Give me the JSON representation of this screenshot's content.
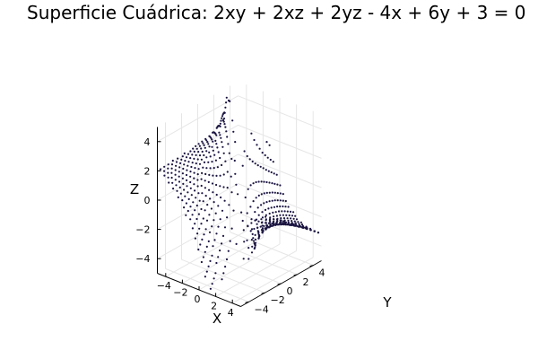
{
  "chart_data": {
    "type": "scatter",
    "title": "Superficie Cuádrica: 2xy + 2xz + 2yz - 4x + 6y + 3 = 0",
    "xlabel": "X",
    "ylabel": "Y",
    "zlabel": "Z",
    "xlim": [
      -5,
      5
    ],
    "ylim": [
      -5,
      5
    ],
    "zlim": [
      -5,
      5
    ],
    "x_ticks": [
      -4,
      -2,
      0,
      2,
      4
    ],
    "y_ticks": [
      -4,
      -2,
      0,
      2,
      4
    ],
    "z_ticks": [
      -4,
      -2,
      0,
      2,
      4
    ],
    "x_tick_labels": [
      "−4",
      "−2",
      "0",
      "2",
      "4"
    ],
    "y_tick_labels": [
      "−4",
      "−2",
      "0",
      "2",
      "4"
    ],
    "z_tick_labels": [
      "−4",
      "−2",
      "0",
      "2",
      "4"
    ],
    "equation": {
      "xy": 2,
      "xz": 2,
      "yz": 2,
      "x": -4,
      "y": 6,
      "const": 3
    },
    "grid": true,
    "legend": "none",
    "marker_color": "#1a1440"
  }
}
